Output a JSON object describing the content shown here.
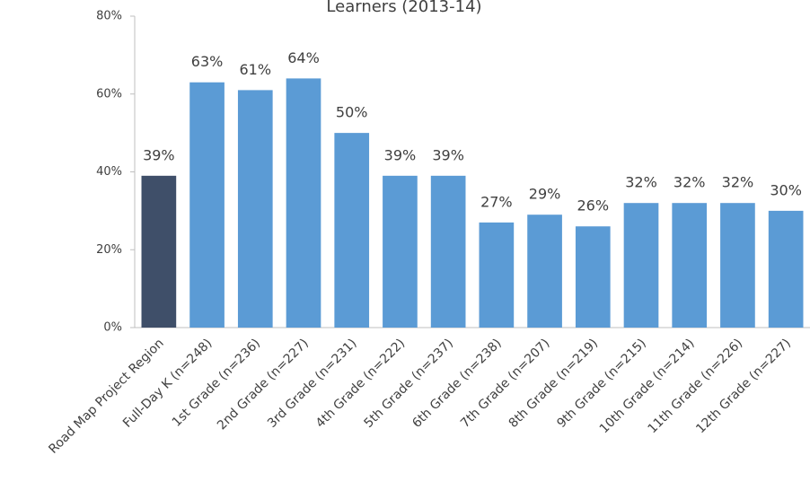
{
  "chart_data": {
    "type": "bar",
    "title": "Learners (2013-14)",
    "categories": [
      "Road Map Project Region",
      "Full-Day K (n=248)",
      "1st Grade (n=236)",
      "2nd Grade (n=227)",
      "3rd Grade (n=231)",
      "4th Grade (n=222)",
      "5th Grade (n=237)",
      "6th Grade (n=238)",
      "7th Grade (n=207)",
      "8th Grade (n=219)",
      "9th Grade (n=215)",
      "10th Grade (n=214)",
      "11th Grade (n=226)",
      "12th Grade (n=227)"
    ],
    "values": [
      39,
      63,
      61,
      64,
      50,
      39,
      39,
      27,
      29,
      26,
      32,
      32,
      32,
      30
    ],
    "value_labels": [
      "39%",
      "63%",
      "61%",
      "64%",
      "50%",
      "39%",
      "39%",
      "27%",
      "29%",
      "26%",
      "32%",
      "32%",
      "32%",
      "30%"
    ],
    "colors": [
      "#3f4f69",
      "#5b9bd5",
      "#5b9bd5",
      "#5b9bd5",
      "#5b9bd5",
      "#5b9bd5",
      "#5b9bd5",
      "#5b9bd5",
      "#5b9bd5",
      "#5b9bd5",
      "#5b9bd5",
      "#5b9bd5",
      "#5b9bd5",
      "#5b9bd5"
    ],
    "ylim": [
      0,
      80
    ],
    "yticks": [
      {
        "value": 0,
        "label": "0%"
      },
      {
        "value": 20,
        "label": "20%"
      },
      {
        "value": 40,
        "label": "40%"
      },
      {
        "value": 60,
        "label": "60%"
      },
      {
        "value": 80,
        "label": "80%"
      }
    ],
    "grid": false
  }
}
